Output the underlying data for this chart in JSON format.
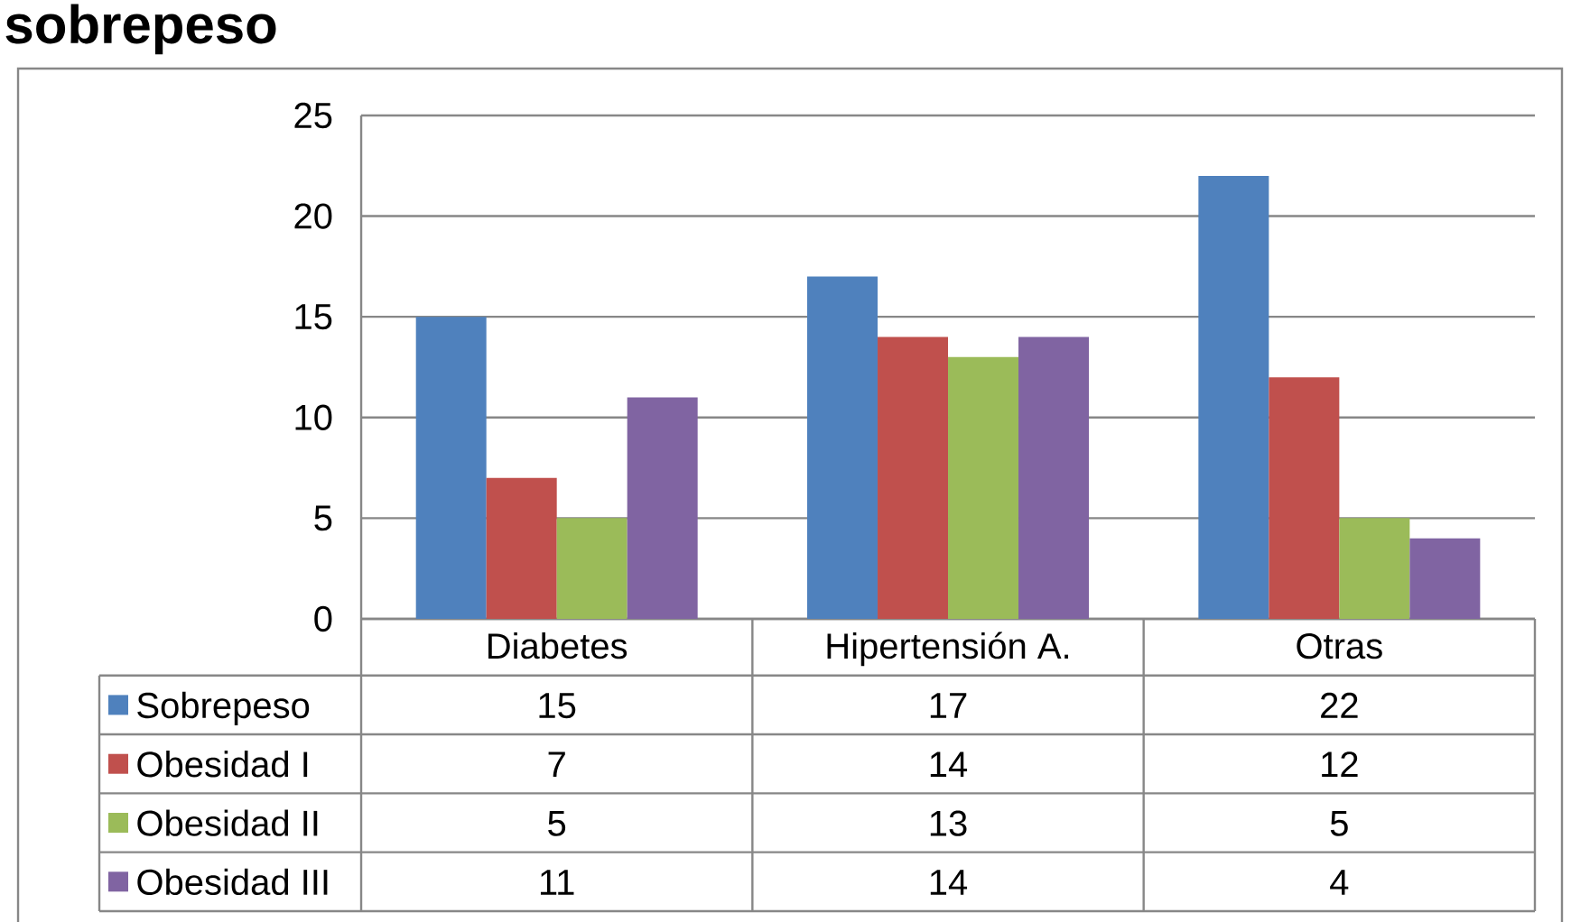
{
  "chart_data": {
    "type": "bar",
    "title": "sobrepeso",
    "categories": [
      "Diabetes",
      "Hipertensión A.",
      "Otras"
    ],
    "series": [
      {
        "name": "Sobrepeso",
        "color": "#4f81bd",
        "values": [
          15,
          17,
          22
        ]
      },
      {
        "name": "Obesidad I",
        "color": "#c0504d",
        "values": [
          7,
          14,
          12
        ]
      },
      {
        "name": "Obesidad II",
        "color": "#9bbb59",
        "values": [
          5,
          13,
          5
        ]
      },
      {
        "name": "Obesidad III",
        "color": "#8064a2",
        "values": [
          11,
          14,
          4
        ]
      }
    ],
    "ylim": [
      0,
      25
    ],
    "yticks": [
      0,
      5,
      10,
      15,
      20,
      25
    ],
    "grid": "y",
    "legend": "bottom",
    "data_labels": true
  }
}
